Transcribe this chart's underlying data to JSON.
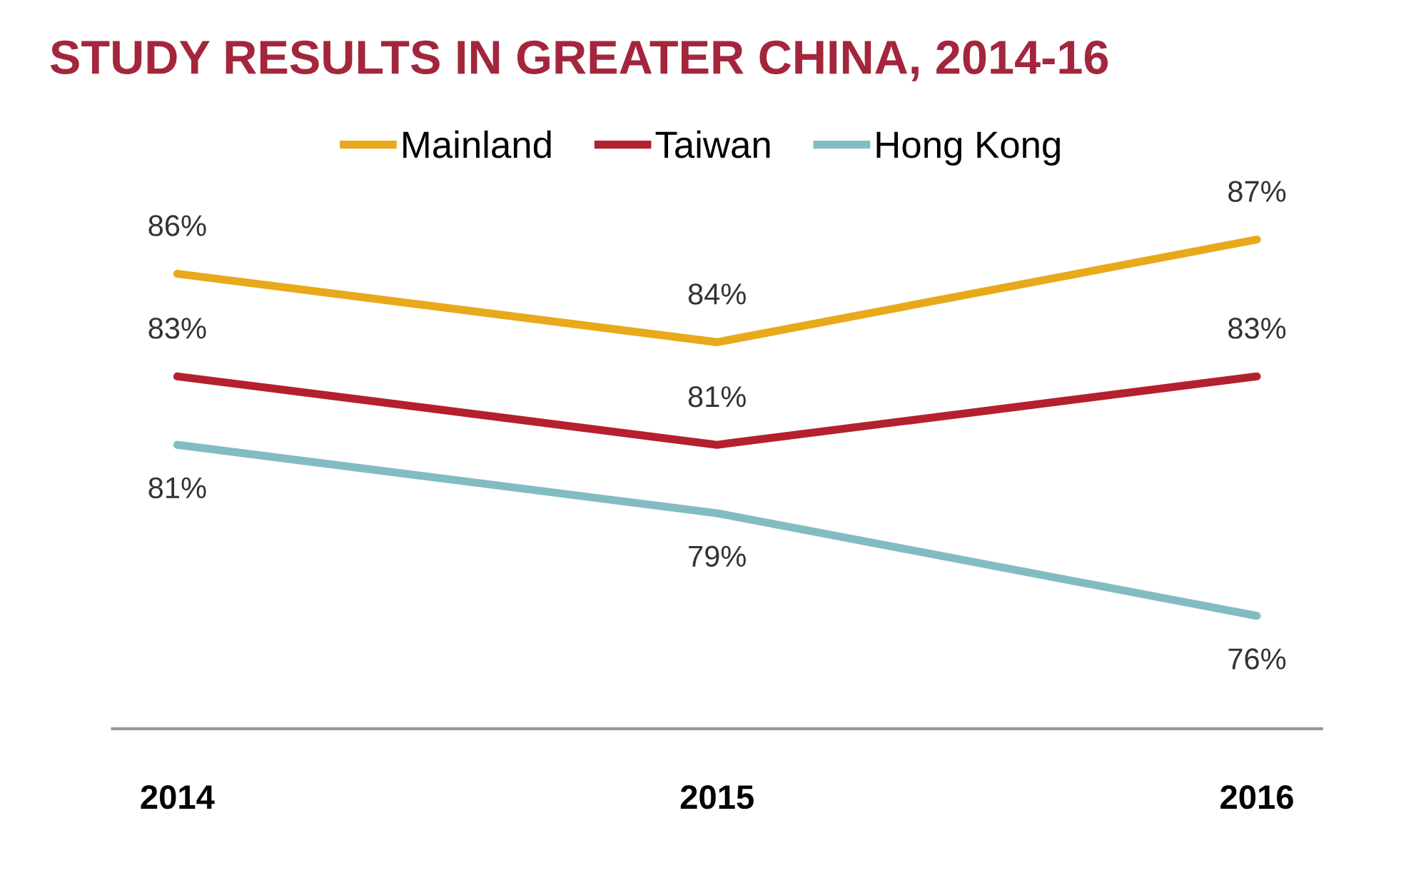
{
  "chart_data": {
    "type": "line",
    "title": "STUDY RESULTS IN GREATER CHINA, 2014-16",
    "categories": [
      "2014",
      "2015",
      "2016"
    ],
    "series": [
      {
        "name": "Mainland",
        "color": "#e8a91a",
        "values": [
          86,
          84,
          87
        ],
        "value_labels": [
          "86%",
          "84%",
          "87%"
        ]
      },
      {
        "name": "Taiwan",
        "color": "#b5202e",
        "values": [
          83,
          81,
          83
        ],
        "value_labels": [
          "83%",
          "81%",
          "83%"
        ]
      },
      {
        "name": "Hong Kong",
        "color": "#82bcc2",
        "values": [
          81,
          79,
          76
        ],
        "value_labels": [
          "81%",
          "79%",
          "76%"
        ]
      }
    ],
    "legend": "top",
    "grid": false,
    "marker": "none",
    "line_style": "solid"
  }
}
